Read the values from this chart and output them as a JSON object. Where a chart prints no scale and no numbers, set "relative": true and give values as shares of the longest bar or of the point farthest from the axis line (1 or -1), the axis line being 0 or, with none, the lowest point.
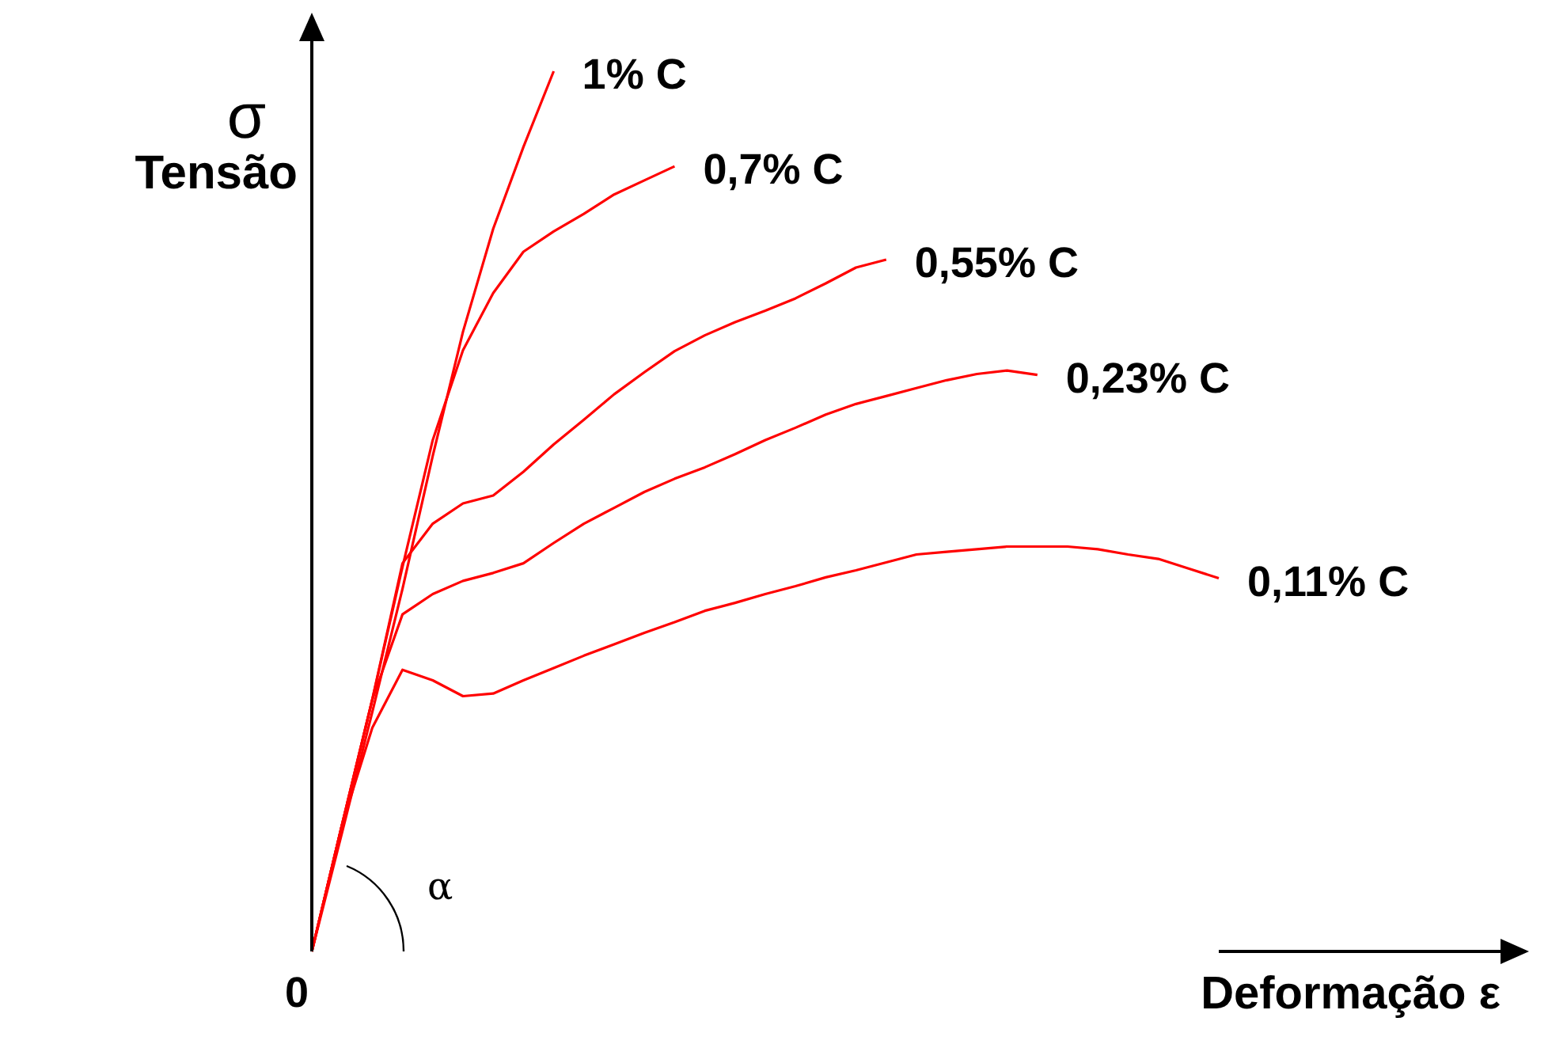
{
  "chart_data": {
    "type": "line",
    "relative": true,
    "xlabel": "Deformação ε",
    "ylabel": "σ Tensão",
    "annotations": [
      "0",
      "α"
    ],
    "legend": false,
    "grid": false,
    "marker": "none",
    "line_style": "solid",
    "categories": [
      null,
      null,
      null,
      null,
      null,
      null,
      null,
      null,
      null,
      null,
      null,
      null,
      null,
      null,
      null,
      null,
      null,
      null,
      null,
      null,
      null,
      null,
      null,
      null,
      null,
      null,
      null,
      null,
      null,
      null,
      null
    ],
    "series": [
      {
        "name": "1% C",
        "color": "#ff0000",
        "values": [
          0,
          0.135,
          0.272,
          0.412,
          0.563,
          0.704,
          0.821,
          0.914,
          1,
          null,
          null,
          null,
          null,
          null,
          null,
          null,
          null,
          null,
          null,
          null,
          null,
          null,
          null,
          null,
          null,
          null,
          null,
          null,
          null,
          null,
          null
        ]
      },
      {
        "name": "0,7% C",
        "color": "#ff0000",
        "values": [
          0,
          0.144,
          0.286,
          0.437,
          0.581,
          0.683,
          0.748,
          0.795,
          0.818,
          0.838,
          0.86,
          0.876,
          0.892,
          null,
          null,
          null,
          null,
          null,
          null,
          null,
          null,
          null,
          null,
          null,
          null,
          null,
          null,
          null,
          null,
          null,
          null
        ]
      },
      {
        "name": "0,55% C",
        "color": "#ff0000",
        "values": [
          0,
          0.144,
          0.286,
          0.441,
          0.486,
          0.509,
          0.518,
          0.545,
          0.576,
          0.604,
          0.633,
          0.658,
          0.682,
          0.7,
          0.715,
          0.728,
          0.742,
          0.759,
          0.777,
          0.786,
          null,
          null,
          null,
          null,
          null,
          null,
          null,
          null,
          null,
          null,
          null
        ]
      },
      {
        "name": "0,23% C",
        "color": "#ff0000",
        "values": [
          0,
          0.144,
          0.286,
          0.383,
          0.406,
          0.421,
          0.43,
          0.441,
          0.464,
          0.486,
          0.504,
          0.522,
          0.537,
          0.55,
          0.565,
          0.581,
          0.595,
          0.61,
          0.622,
          0.631,
          0.64,
          0.649,
          0.656,
          0.66,
          0.655,
          null,
          null,
          null,
          null,
          null,
          null
        ]
      },
      {
        "name": "0,11% C",
        "color": "#ff0000",
        "values": [
          0,
          0.144,
          0.254,
          0.32,
          0.308,
          0.29,
          0.293,
          0.308,
          0.322,
          0.336,
          0.349,
          0.362,
          0.374,
          0.387,
          0.396,
          0.406,
          0.415,
          0.425,
          0.433,
          0.442,
          0.451,
          0.454,
          0.457,
          0.46,
          0.46,
          0.46,
          0.457,
          0.451,
          0.446,
          0.435,
          0.424
        ]
      }
    ]
  }
}
